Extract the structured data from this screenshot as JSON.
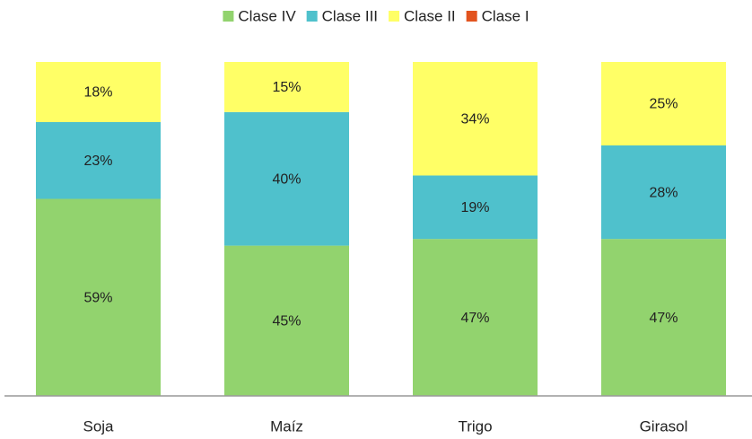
{
  "chart_data": {
    "type": "stacked_bar",
    "categories": [
      "Soja",
      "Maíz",
      "Trigo",
      "Girasol"
    ],
    "series": [
      {
        "name": "Clase IV",
        "color": "#92d36e",
        "values": [
          59,
          45,
          47,
          47
        ],
        "value_labels": [
          "59%",
          "45%",
          "47%",
          "47%"
        ]
      },
      {
        "name": "Clase III",
        "color": "#4fc1cc",
        "values": [
          23,
          40,
          19,
          28
        ],
        "value_labels": [
          "23%",
          "40%",
          "19%",
          "28%"
        ]
      },
      {
        "name": "Clase II",
        "color": "#ffff66",
        "values": [
          18,
          15,
          34,
          25
        ],
        "value_labels": [
          "18%",
          "15%",
          "34%",
          "25%"
        ]
      },
      {
        "name": "Clase I",
        "color": "#e2531e",
        "values": [
          0,
          0,
          0,
          0
        ]
      }
    ],
    "ylim": [
      0,
      100
    ],
    "legend": "top"
  }
}
